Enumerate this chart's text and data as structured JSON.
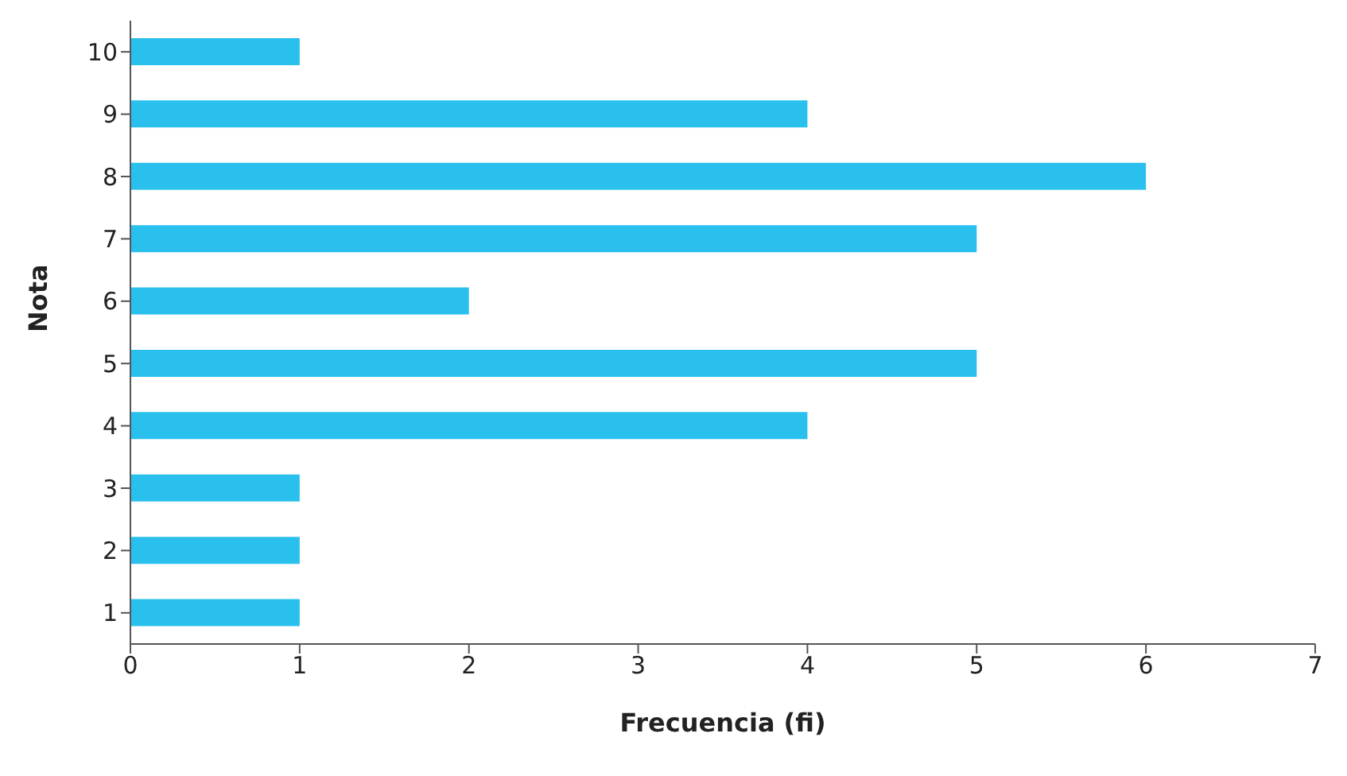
{
  "chart_data": {
    "type": "bar",
    "orientation": "horizontal",
    "xlabel": "Frecuencia (fi)",
    "ylabel": "Nota",
    "categories": [
      "10",
      "9",
      "8",
      "7",
      "6",
      "5",
      "4",
      "3",
      "2",
      "1"
    ],
    "values": [
      1,
      4,
      6,
      5,
      2,
      5,
      4,
      1,
      1,
      1
    ],
    "color": "#29c0ee",
    "xlim": [
      0,
      7
    ],
    "xticks": [
      0,
      1,
      2,
      3,
      4,
      5,
      6,
      7
    ],
    "grid": false,
    "legend": false
  }
}
